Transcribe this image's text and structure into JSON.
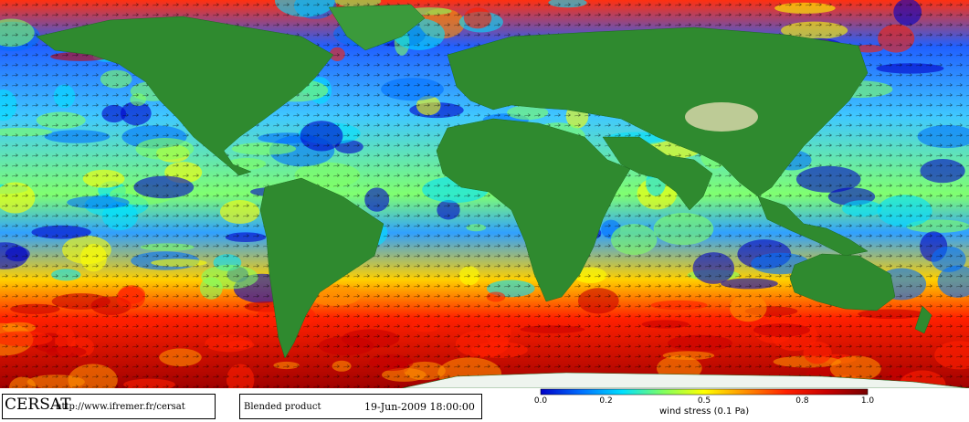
{
  "footer": {
    "logo_text": "CERSAT",
    "url": "http://www.ifremer.fr/cersat",
    "product": "Blended product",
    "datetime": "19-Jun-2009 18:00:00"
  },
  "colorbar": {
    "ticks": [
      "0.0",
      "0.2",
      "0.5",
      "0.8",
      "1.0"
    ],
    "tick_values": [
      0.0,
      0.2,
      0.5,
      0.8,
      1.0
    ],
    "label": "wind stress (0.1 Pa)",
    "colors": [
      "#0000c8",
      "#0070ff",
      "#00e0ff",
      "#80ff60",
      "#ffff00",
      "#ff9000",
      "#ff2000",
      "#c80000",
      "#780000"
    ]
  },
  "land_colors": {
    "lowland": "#2f8a2f",
    "highland": "#d6d6a8",
    "ice": "#ffffff"
  }
}
